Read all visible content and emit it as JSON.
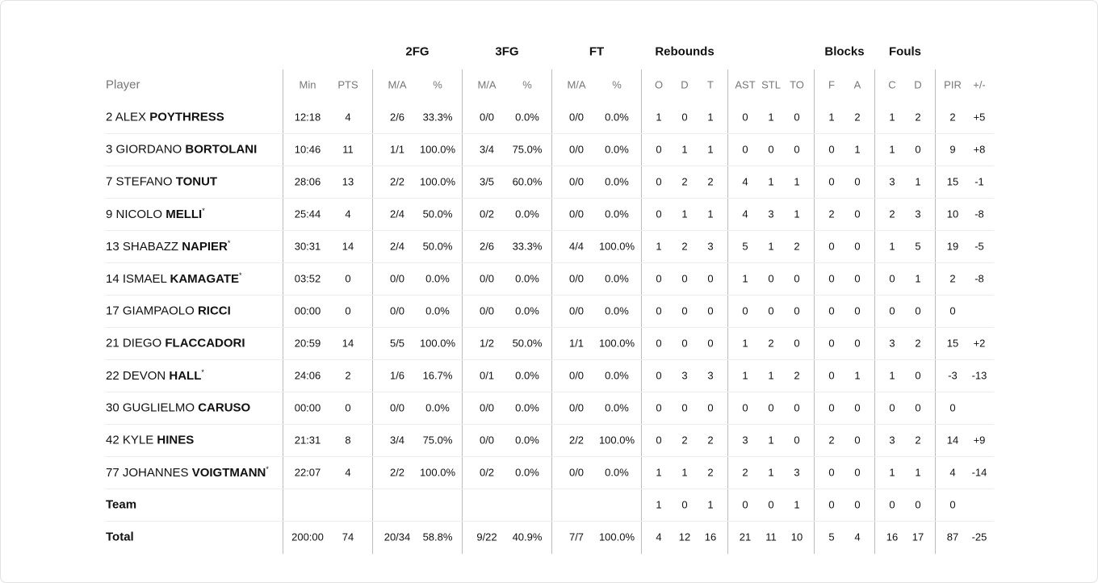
{
  "table": {
    "group_headers": [
      {
        "label": "2FG",
        "over": [
          3,
          4
        ]
      },
      {
        "label": "3FG",
        "over": [
          5,
          6
        ]
      },
      {
        "label": "FT",
        "over": [
          7,
          8
        ]
      },
      {
        "label": "Rebounds",
        "over": [
          9,
          11
        ]
      },
      {
        "label": "Blocks",
        "over": [
          15,
          16
        ]
      },
      {
        "label": "Fouls",
        "over": [
          17,
          18
        ]
      }
    ],
    "columns": [
      "Player",
      "Min",
      "PTS",
      "M/A",
      "%",
      "M/A",
      "%",
      "M/A",
      "%",
      "O",
      "D",
      "T",
      "AST",
      "STL",
      "TO",
      "F",
      "A",
      "C",
      "D",
      "PIR",
      "+/-"
    ],
    "rows": [
      {
        "number": "2",
        "first": "ALEX",
        "last": "POYTHRESS",
        "stats": [
          "12:18",
          "4",
          "2/6",
          "33.3%",
          "0/0",
          "0.0%",
          "0/0",
          "0.0%",
          "1",
          "0",
          "1",
          "0",
          "1",
          "0",
          "1",
          "2",
          "1",
          "2",
          "2",
          "+5"
        ]
      },
      {
        "number": "3",
        "first": "GIORDANO",
        "last": "BORTOLANI",
        "stats": [
          "10:46",
          "11",
          "1/1",
          "100.0%",
          "3/4",
          "75.0%",
          "0/0",
          "0.0%",
          "0",
          "1",
          "1",
          "0",
          "0",
          "0",
          "0",
          "1",
          "1",
          "0",
          "9",
          "+8"
        ]
      },
      {
        "number": "7",
        "first": "STEFANO",
        "last": "TONUT",
        "stats": [
          "28:06",
          "13",
          "2/2",
          "100.0%",
          "3/5",
          "60.0%",
          "0/0",
          "0.0%",
          "0",
          "2",
          "2",
          "4",
          "1",
          "1",
          "0",
          "0",
          "3",
          "1",
          "15",
          "-1"
        ]
      },
      {
        "number": "9",
        "first": "NICOLO",
        "last": "MELLI",
        "mark": "*",
        "stats": [
          "25:44",
          "4",
          "2/4",
          "50.0%",
          "0/2",
          "0.0%",
          "0/0",
          "0.0%",
          "0",
          "1",
          "1",
          "4",
          "3",
          "1",
          "2",
          "0",
          "2",
          "3",
          "10",
          "-8"
        ]
      },
      {
        "number": "13",
        "first": "SHABAZZ",
        "last": "NAPIER",
        "mark": "*",
        "stats": [
          "30:31",
          "14",
          "2/4",
          "50.0%",
          "2/6",
          "33.3%",
          "4/4",
          "100.0%",
          "1",
          "2",
          "3",
          "5",
          "1",
          "2",
          "0",
          "0",
          "1",
          "5",
          "19",
          "-5"
        ]
      },
      {
        "number": "14",
        "first": "ISMAEL",
        "last": "KAMAGATE",
        "mark": "*",
        "stats": [
          "03:52",
          "0",
          "0/0",
          "0.0%",
          "0/0",
          "0.0%",
          "0/0",
          "0.0%",
          "0",
          "0",
          "0",
          "1",
          "0",
          "0",
          "0",
          "0",
          "0",
          "1",
          "2",
          "-8"
        ]
      },
      {
        "number": "17",
        "first": "GIAMPAOLO",
        "last": "RICCI",
        "stats": [
          "00:00",
          "0",
          "0/0",
          "0.0%",
          "0/0",
          "0.0%",
          "0/0",
          "0.0%",
          "0",
          "0",
          "0",
          "0",
          "0",
          "0",
          "0",
          "0",
          "0",
          "0",
          "0",
          null
        ]
      },
      {
        "number": "21",
        "first": "DIEGO",
        "last": "FLACCADORI",
        "stats": [
          "20:59",
          "14",
          "5/5",
          "100.0%",
          "1/2",
          "50.0%",
          "1/1",
          "100.0%",
          "0",
          "0",
          "0",
          "1",
          "2",
          "0",
          "0",
          "0",
          "3",
          "2",
          "15",
          "+2"
        ]
      },
      {
        "number": "22",
        "first": "DEVON",
        "last": "HALL",
        "mark": "*",
        "stats": [
          "24:06",
          "2",
          "1/6",
          "16.7%",
          "0/1",
          "0.0%",
          "0/0",
          "0.0%",
          "0",
          "3",
          "3",
          "1",
          "1",
          "2",
          "0",
          "1",
          "1",
          "0",
          "-3",
          "-13"
        ]
      },
      {
        "number": "30",
        "first": "GUGLIELMO",
        "last": "CARUSO",
        "stats": [
          "00:00",
          "0",
          "0/0",
          "0.0%",
          "0/0",
          "0.0%",
          "0/0",
          "0.0%",
          "0",
          "0",
          "0",
          "0",
          "0",
          "0",
          "0",
          "0",
          "0",
          "0",
          "0",
          null
        ]
      },
      {
        "number": "42",
        "first": "KYLE",
        "last": "HINES",
        "stats": [
          "21:31",
          "8",
          "3/4",
          "75.0%",
          "0/0",
          "0.0%",
          "2/2",
          "100.0%",
          "0",
          "2",
          "2",
          "3",
          "1",
          "0",
          "2",
          "0",
          "3",
          "2",
          "14",
          "+9"
        ]
      },
      {
        "number": "77",
        "first": "JOHANNES",
        "last": "VOIGTMANN",
        "mark": "*",
        "stats": [
          "22:07",
          "4",
          "2/2",
          "100.0%",
          "0/2",
          "0.0%",
          "0/0",
          "0.0%",
          "1",
          "1",
          "2",
          "2",
          "1",
          "3",
          "0",
          "0",
          "1",
          "1",
          "4",
          "-14"
        ]
      },
      {
        "name": "Team",
        "stats": [
          null,
          null,
          null,
          null,
          null,
          null,
          null,
          null,
          "1",
          "0",
          "1",
          "0",
          "0",
          "1",
          "0",
          "0",
          "0",
          "0",
          "0",
          null
        ]
      },
      {
        "name": "Total",
        "stats": [
          "200:00",
          "74",
          "20/34",
          "58.8%",
          "9/22",
          "40.9%",
          "7/7",
          "100.0%",
          "4",
          "12",
          "16",
          "21",
          "11",
          "10",
          "5",
          "4",
          "16",
          "17",
          "87",
          "-25"
        ]
      }
    ]
  }
}
